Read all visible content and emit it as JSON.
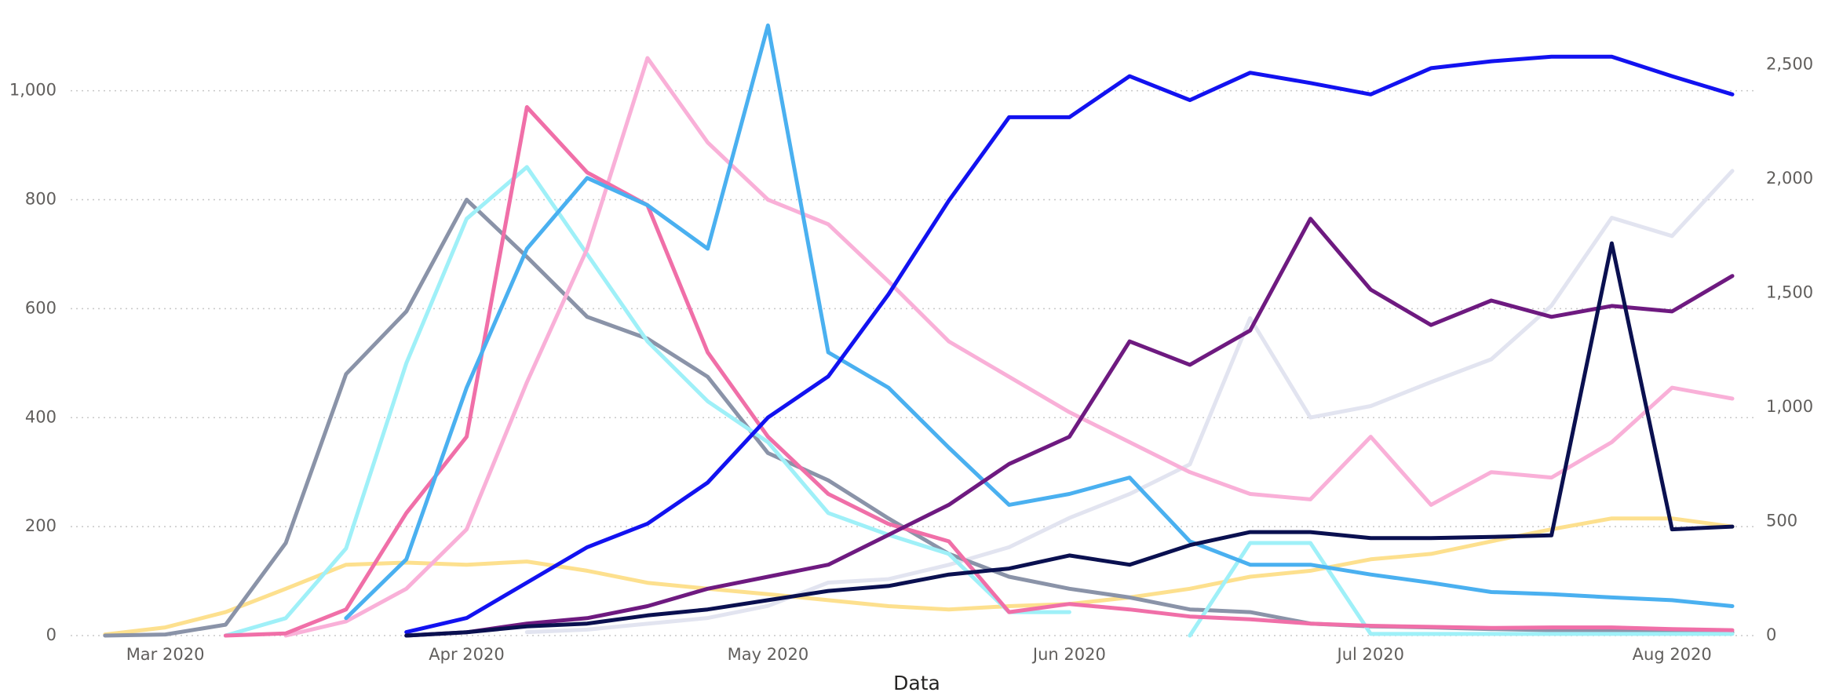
{
  "chart_data": {
    "type": "line",
    "x_label": "Data",
    "categories": [
      null,
      null,
      "Mar 2020",
      null,
      null,
      null,
      null,
      "Apr 2020",
      null,
      null,
      null,
      null,
      "May 2020",
      null,
      null,
      null,
      null,
      "Jun 2020",
      null,
      null,
      null,
      null,
      "Jul 2020",
      null,
      null,
      null,
      null,
      "Aug 2020",
      null
    ],
    "ylim": [
      0,
      1145
    ],
    "yticks": [
      0,
      200,
      400,
      600,
      800,
      {
        "value": 1000,
        "label": "1,000"
      }
    ],
    "y2lim": [
      0,
      2732
    ],
    "y2ticks": [
      0,
      500,
      {
        "value": 1000,
        "label": "1,000"
      },
      {
        "value": 1500,
        "label": "1,500"
      },
      {
        "value": 2000,
        "label": "2,000"
      },
      {
        "value": 2500,
        "label": "2,500"
      }
    ],
    "grid": true,
    "series": [
      {
        "color": "#fde08e",
        "values": [
          null,
          2,
          15,
          43,
          86,
          130,
          134,
          130,
          136,
          119,
          97,
          86,
          76,
          65,
          54,
          48,
          54,
          58,
          70,
          86,
          108,
          119,
          140,
          150,
          173,
          195,
          215,
          215,
          200
        ]
      },
      {
        "color": "#e2e4f0",
        "axis": "y2",
        "values": [
          null,
          null,
          null,
          null,
          null,
          null,
          null,
          null,
          15,
          26,
          52,
          77,
          130,
          232,
          247,
          310,
          387,
          515,
          620,
          750,
          1390,
          955,
          1005,
          1110,
          1210,
          1445,
          1830,
          1750,
          2035
        ]
      },
      {
        "color": "#8a93a8",
        "values": [
          null,
          0,
          2,
          20,
          170,
          480,
          595,
          800,
          695,
          585,
          545,
          475,
          335,
          285,
          215,
          150,
          108,
          86,
          70,
          48,
          43,
          22,
          17,
          15,
          12,
          10,
          8,
          7,
          6
        ]
      },
      {
        "color": "#9ff0f8",
        "values": [
          null,
          null,
          null,
          0,
          32,
          160,
          500,
          765,
          860,
          700,
          540,
          430,
          355,
          225,
          185,
          150,
          43,
          43,
          null,
          0,
          170,
          170,
          3,
          3,
          3,
          3,
          3,
          3,
          3
        ]
      },
      {
        "color": "#f9b0d8",
        "values": [
          null,
          null,
          null,
          null,
          0,
          26,
          86,
          195,
          465,
          710,
          1060,
          905,
          800,
          755,
          650,
          540,
          475,
          410,
          355,
          300,
          260,
          250,
          365,
          240,
          300,
          290,
          355,
          455,
          435
        ]
      },
      {
        "color": "#f06fa8",
        "values": [
          null,
          null,
          null,
          0,
          4,
          48,
          225,
          365,
          970,
          850,
          790,
          520,
          365,
          260,
          205,
          173,
          43,
          58,
          48,
          35,
          30,
          22,
          18,
          16,
          14,
          15,
          15,
          12,
          10
        ]
      },
      {
        "color": "#4ab0f0",
        "values": [
          null,
          null,
          null,
          null,
          null,
          32,
          140,
          455,
          710,
          840,
          790,
          710,
          1120,
          520,
          455,
          345,
          240,
          260,
          290,
          173,
          130,
          130,
          112,
          97,
          80,
          76,
          70,
          65,
          54
        ]
      },
      {
        "color": "#1212f0",
        "axis": "y2",
        "values": [
          null,
          null,
          null,
          null,
          null,
          null,
          15,
          77,
          232,
          387,
          490,
          670,
          955,
          1135,
          1495,
          1905,
          2270,
          2270,
          2450,
          2345,
          2465,
          2420,
          2370,
          2485,
          2515,
          2535,
          2535,
          2450,
          2370
        ]
      },
      {
        "color": "#6e1a80",
        "values": [
          null,
          null,
          null,
          null,
          null,
          null,
          0,
          6,
          22,
          32,
          54,
          86,
          108,
          130,
          185,
          240,
          315,
          365,
          540,
          497,
          560,
          765,
          635,
          570,
          615,
          585,
          605,
          595,
          660
        ]
      },
      {
        "color": "#0a1050",
        "values": [
          null,
          null,
          null,
          null,
          null,
          null,
          0,
          6,
          17,
          22,
          37,
          48,
          65,
          82,
          91,
          112,
          123,
          147,
          130,
          166,
          190,
          190,
          179,
          179,
          181,
          184,
          720,
          195,
          200
        ]
      }
    ]
  }
}
